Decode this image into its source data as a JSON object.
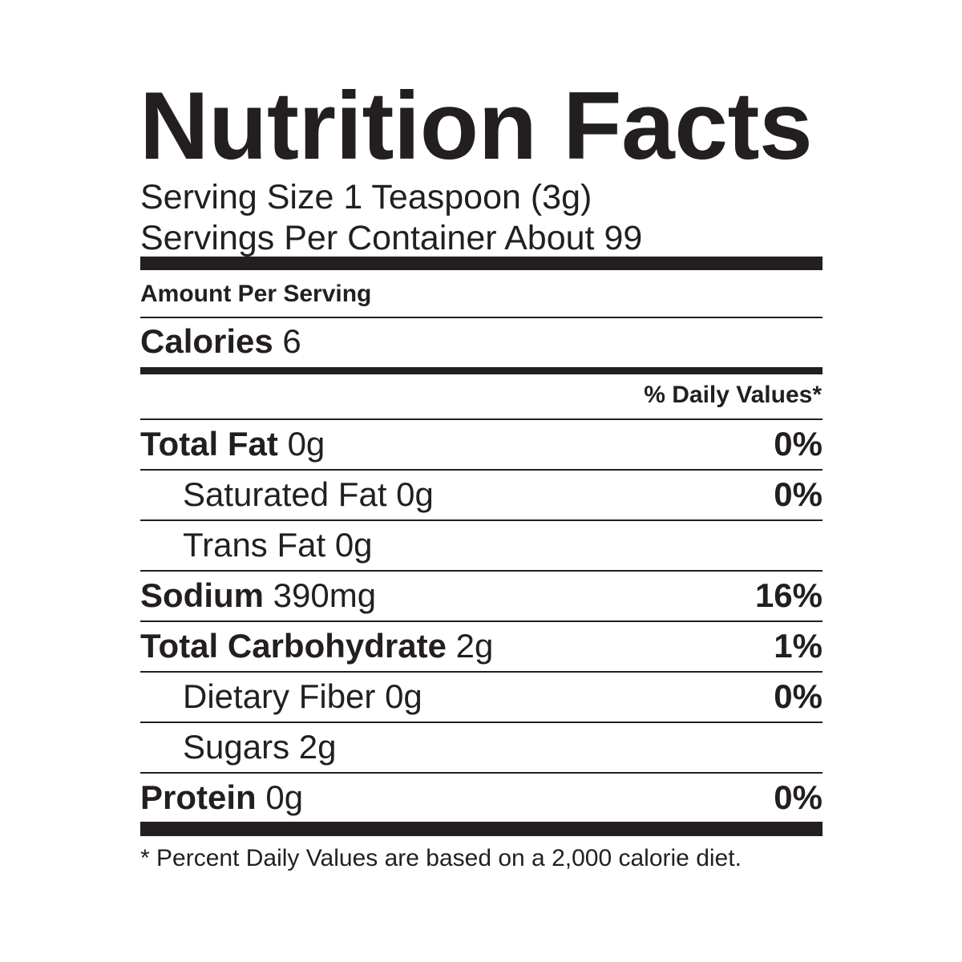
{
  "title": "Nutrition Facts",
  "serving_size": "Serving Size 1 Teaspoon (3g)",
  "servings_per_container": "Servings Per Container About 99",
  "amount_per_serving": "Amount Per Serving",
  "calories": {
    "label": "Calories",
    "value": "6"
  },
  "daily_values_header": "% Daily Values*",
  "nutrients": [
    {
      "name": "Total Fat",
      "amount": "0g",
      "dv": "0%",
      "bold": true
    },
    {
      "name": "Saturated Fat",
      "amount": "0g",
      "dv": "0%",
      "bold": false
    },
    {
      "name": "Trans Fat",
      "amount": "0g",
      "dv": "",
      "bold": false
    },
    {
      "name": "Sodium",
      "amount": "390mg",
      "dv": "16%",
      "bold": true
    },
    {
      "name": "Total Carbohydrate",
      "amount": "2g",
      "dv": "1%",
      "bold": true
    },
    {
      "name": "Dietary Fiber",
      "amount": "0g",
      "dv": "0%",
      "bold": false
    },
    {
      "name": "Sugars",
      "amount": "2g",
      "dv": "",
      "bold": false
    },
    {
      "name": "Protein",
      "amount": "0g",
      "dv": "0%",
      "bold": true
    }
  ],
  "footnote": "* Percent Daily Values are based on a 2,000 calorie diet."
}
